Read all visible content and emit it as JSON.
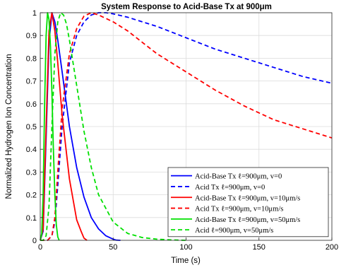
{
  "chart_data": {
    "type": "line",
    "title": "System Response to Acid-Base Tx at 900μm",
    "xlabel": "Time (s)",
    "ylabel": "Normalized Hydrogen Ion Concentration",
    "xlim": [
      0,
      200
    ],
    "ylim": [
      0,
      1
    ],
    "xticks": [
      0,
      50,
      100,
      150,
      200
    ],
    "yticks": [
      0,
      0.1,
      0.2,
      0.3,
      0.4,
      0.5,
      0.6,
      0.7,
      0.8,
      0.9,
      1
    ],
    "grid": true,
    "legend_position": "bottom-right",
    "series": [
      {
        "name": "Acid-Base Tx ℓ=900μm, v=0",
        "color": "#0000ff",
        "dash": "solid",
        "x": [
          0,
          2,
          4,
          6,
          8,
          10,
          12,
          15,
          20,
          25,
          30,
          35,
          40,
          45,
          50,
          52,
          55
        ],
        "y": [
          0,
          0.04,
          0.45,
          0.87,
          1.0,
          0.96,
          0.88,
          0.74,
          0.5,
          0.32,
          0.19,
          0.1,
          0.05,
          0.02,
          0.005,
          0.001,
          0
        ]
      },
      {
        "name": "Acid Tx ℓ=900μm, v=0",
        "color": "#0000ff",
        "dash": "dashed",
        "x": [
          0,
          5,
          8,
          10,
          12,
          15,
          20,
          25,
          30,
          35,
          40,
          45,
          50,
          60,
          70,
          80,
          100,
          120,
          140,
          160,
          180,
          200
        ],
        "y": [
          0,
          0.0,
          0.02,
          0.08,
          0.24,
          0.5,
          0.78,
          0.9,
          0.96,
          0.99,
          1.0,
          1.0,
          0.995,
          0.98,
          0.96,
          0.94,
          0.89,
          0.84,
          0.8,
          0.76,
          0.72,
          0.69
        ]
      },
      {
        "name": "Acid-Base Tx ℓ=900μm, v=10μm/s",
        "color": "#ff0000",
        "dash": "solid",
        "x": [
          0,
          2,
          4,
          6,
          8,
          10,
          12,
          15,
          20,
          25,
          28,
          30,
          32
        ],
        "y": [
          0,
          0.05,
          0.5,
          0.92,
          1.0,
          0.92,
          0.78,
          0.55,
          0.27,
          0.09,
          0.04,
          0.01,
          0
        ]
      },
      {
        "name": "Acid Tx ℓ=900μm, v=10μm/s",
        "color": "#ff0000",
        "dash": "dashed",
        "x": [
          0,
          5,
          8,
          10,
          12,
          15,
          20,
          25,
          30,
          35,
          40,
          50,
          60,
          70,
          80,
          100,
          120,
          140,
          160,
          180,
          200
        ],
        "y": [
          0,
          0.0,
          0.02,
          0.1,
          0.3,
          0.58,
          0.82,
          0.93,
          0.985,
          1.0,
          0.99,
          0.96,
          0.92,
          0.87,
          0.82,
          0.74,
          0.66,
          0.59,
          0.53,
          0.49,
          0.45
        ]
      },
      {
        "name": "Acid-Base Tx ℓ=900μm, v=50μm/s",
        "color": "#00e000",
        "dash": "solid",
        "x": [
          0,
          1,
          2,
          3,
          4,
          5,
          6,
          7,
          8,
          9,
          10,
          11,
          12,
          13
        ],
        "y": [
          0,
          0.03,
          0.2,
          0.6,
          0.9,
          1.0,
          0.97,
          0.85,
          0.65,
          0.4,
          0.2,
          0.07,
          0.015,
          0
        ]
      },
      {
        "name": "Acid ℓ=900μm, v=50μm/s",
        "color": "#00e000",
        "dash": "dashed",
        "x": [
          0,
          2,
          4,
          6,
          8,
          10,
          12,
          14,
          16,
          18,
          20,
          25,
          30,
          35,
          40,
          50,
          60,
          70,
          80,
          90,
          100
        ],
        "y": [
          0,
          0.0,
          0.02,
          0.15,
          0.5,
          0.82,
          0.96,
          1.0,
          0.99,
          0.95,
          0.88,
          0.68,
          0.48,
          0.32,
          0.2,
          0.08,
          0.03,
          0.012,
          0.005,
          0.002,
          0
        ]
      }
    ]
  }
}
